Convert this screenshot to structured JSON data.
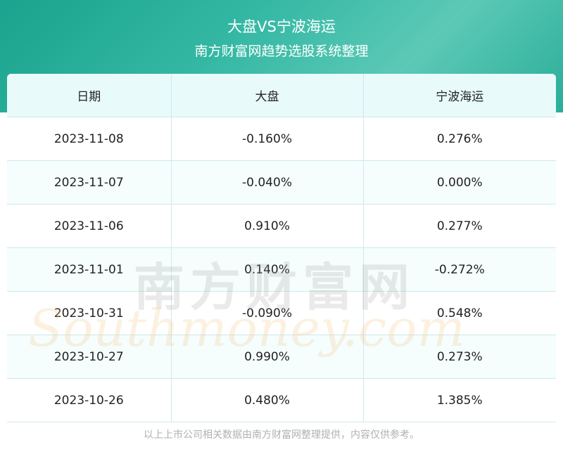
{
  "header": {
    "title": "大盘VS宁波海运",
    "subtitle": "南方财富网趋势选股系统整理"
  },
  "table": {
    "columns": [
      "日期",
      "大盘",
      "宁波海运"
    ],
    "rows": [
      [
        "2023-11-08",
        "-0.160%",
        "0.276%"
      ],
      [
        "2023-11-07",
        "-0.040%",
        "0.000%"
      ],
      [
        "2023-11-06",
        "0.910%",
        "0.277%"
      ],
      [
        "2023-11-01",
        "0.140%",
        "-0.272%"
      ],
      [
        "2023-10-31",
        "-0.090%",
        "0.548%"
      ],
      [
        "2023-10-27",
        "0.990%",
        "0.273%"
      ],
      [
        "2023-10-26",
        "0.480%",
        "1.385%"
      ]
    ]
  },
  "watermark": {
    "cn": "南方财富网",
    "en": "Southmoney.com"
  },
  "footer": "以上上市公司相关数据由南方财富网整理提供，内容仅供参考。"
}
